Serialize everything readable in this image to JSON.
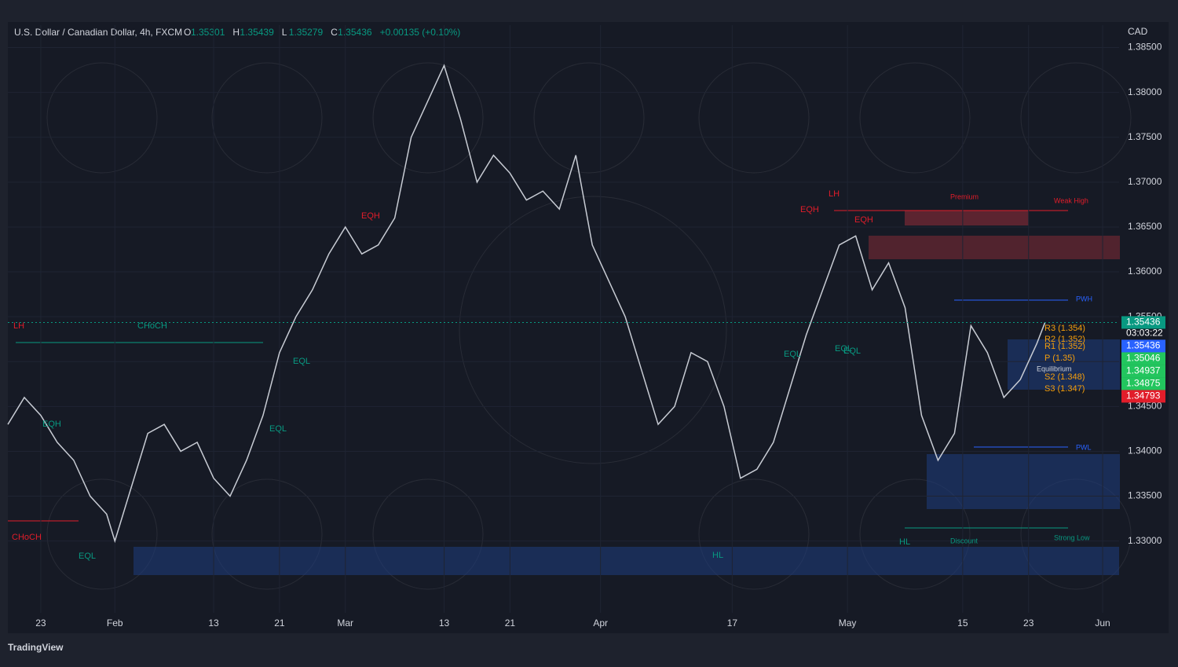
{
  "header": {
    "symbol": "U.S. Dollar / Canadian Dollar, 4h, FXCM",
    "ohlc": [
      {
        "key": "O",
        "val": "1.35301"
      },
      {
        "key": "H",
        "val": "1.35439"
      },
      {
        "key": "L",
        "val": "1.35279"
      },
      {
        "key": "C",
        "val": "1.35436"
      }
    ],
    "change": "+0.00135 (+0.10%)",
    "currency": "CAD"
  },
  "chart_data": {
    "type": "line",
    "x": [
      18,
      20,
      22,
      24,
      26,
      28,
      30,
      31,
      33,
      35,
      37,
      39,
      41,
      43,
      45,
      47,
      49,
      51,
      53,
      55,
      57,
      59,
      61,
      63,
      65,
      67,
      69,
      71,
      73,
      75,
      77,
      79,
      81,
      83,
      85,
      87,
      89,
      91,
      93,
      95,
      97,
      99,
      101,
      103,
      105,
      107,
      109,
      111,
      113,
      115,
      117,
      119,
      121,
      123,
      125,
      127,
      129,
      131,
      133,
      135,
      137,
      139,
      141,
      143,
      144
    ],
    "series": [
      {
        "color": "#c8ccd4",
        "values": [
          1.343,
          1.346,
          1.344,
          1.341,
          1.339,
          1.335,
          1.333,
          1.33,
          1.336,
          1.342,
          1.343,
          1.34,
          1.341,
          1.337,
          1.335,
          1.339,
          1.344,
          1.351,
          1.355,
          1.358,
          1.362,
          1.365,
          1.362,
          1.363,
          1.366,
          1.375,
          1.379,
          1.383,
          1.377,
          1.37,
          1.373,
          1.371,
          1.368,
          1.369,
          1.367,
          1.373,
          1.363,
          1.359,
          1.355,
          1.349,
          1.343,
          1.345,
          1.351,
          1.35,
          1.345,
          1.337,
          1.338,
          1.341,
          1.347,
          1.353,
          1.358,
          1.363,
          1.364,
          1.358,
          1.361,
          1.356,
          1.344,
          1.339,
          1.342,
          1.354,
          1.351,
          1.346,
          1.348,
          1.352,
          1.35436
        ]
      }
    ],
    "xlim": [
      18,
      153
    ],
    "ylim": [
      1.322,
      1.3875
    ],
    "xticks": [
      {
        "value": 22,
        "label": "23"
      },
      {
        "value": 31,
        "label": "Feb"
      },
      {
        "value": 43,
        "label": "13"
      },
      {
        "value": 51,
        "label": "21"
      },
      {
        "value": 59,
        "label": "Mar"
      },
      {
        "value": 71,
        "label": "13"
      },
      {
        "value": 79,
        "label": "21"
      },
      {
        "value": 90,
        "label": "Apr"
      },
      {
        "value": 106,
        "label": "17"
      },
      {
        "value": 120,
        "label": "May"
      },
      {
        "value": 134,
        "label": "15"
      },
      {
        "value": 142,
        "label": "23"
      },
      {
        "value": 151,
        "label": "Jun"
      }
    ],
    "yticks": [
      {
        "value": 1.385,
        "label": "1.38500"
      },
      {
        "value": 1.38,
        "label": "1.38000"
      },
      {
        "value": 1.375,
        "label": "1.37500"
      },
      {
        "value": 1.37,
        "label": "1.37000"
      },
      {
        "value": 1.365,
        "label": "1.36500"
      },
      {
        "value": 1.36,
        "label": "1.36000"
      },
      {
        "value": 1.355,
        "label": "1.35500"
      },
      {
        "value": 1.35,
        "label": "1.35000"
      },
      {
        "value": 1.345,
        "label": "1.34500"
      },
      {
        "value": 1.34,
        "label": "1.34000"
      },
      {
        "value": 1.335,
        "label": "1.33500"
      },
      {
        "value": 1.33,
        "label": "1.33000"
      }
    ],
    "price_tags": [
      {
        "value": 1.35436,
        "label": "1.35436",
        "color": "#089981"
      },
      {
        "value": 1.35436,
        "label": "1.35436",
        "color": "#2962ff"
      },
      {
        "value": 1.35046,
        "label": "1.35046",
        "color": "#22c55e"
      },
      {
        "value": 1.34937,
        "label": "1.34937",
        "color": "#22c55e"
      },
      {
        "value": 1.34875,
        "label": "1.34875",
        "color": "#22c55e"
      },
      {
        "value": 1.34793,
        "label": "1.34793",
        "color": "#e11d2a"
      }
    ],
    "countdown": "03:03:22",
    "annotations": [
      "LH",
      "CHoCH",
      "EQH",
      "EQL",
      "EQL",
      "EQL",
      "CHoCH",
      "EQL",
      "HL",
      "EQH",
      "LH",
      "EQH",
      "EQL",
      "EQL",
      "EQH",
      "HL",
      "Premium",
      "Discount",
      "PWH",
      "PWL",
      "Weak High",
      "Strong Low",
      "R3 (1.354)",
      "R2 (1.352)",
      "R1 (1.352)",
      "P (1.35)",
      "Equilibrium",
      "S2 (1.348)",
      "S3 (1.347)"
    ]
  },
  "footer": "TradingView"
}
